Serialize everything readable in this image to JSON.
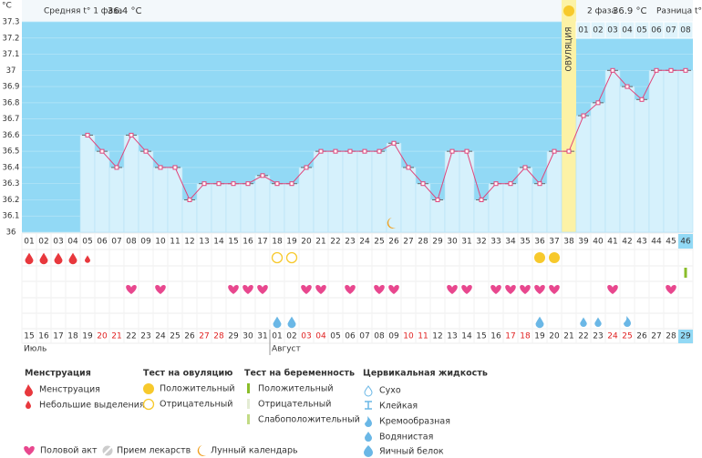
{
  "unit": "°C",
  "header": {
    "phase1_label": "Средняя t° 1 фаза",
    "phase1_value": "36.4 °C",
    "ovulation": "ОВУЛЯЦИЯ",
    "phase2_label": "2 фаза",
    "phase2_value": "36.9 °C",
    "difference_label": "Разница t°",
    "phase2_days": [
      "01",
      "02",
      "03",
      "04",
      "05",
      "06",
      "07",
      "08"
    ]
  },
  "chart_data": {
    "type": "line",
    "color": "#e0457b",
    "categories": [
      "01",
      "02",
      "03",
      "04",
      "05",
      "06",
      "07",
      "08",
      "09",
      "10",
      "11",
      "12",
      "13",
      "14",
      "15",
      "16",
      "17",
      "18",
      "19",
      "20",
      "21",
      "22",
      "23",
      "24",
      "25",
      "26",
      "27",
      "28",
      "29",
      "30",
      "31",
      "32",
      "33",
      "34",
      "35",
      "36",
      "37",
      "38",
      "39",
      "40",
      "41",
      "42",
      "43",
      "44",
      "45",
      "46"
    ],
    "values": [
      null,
      null,
      null,
      null,
      36.6,
      36.5,
      36.4,
      36.6,
      36.5,
      36.4,
      36.4,
      36.2,
      36.3,
      36.3,
      36.3,
      36.3,
      36.35,
      36.3,
      36.3,
      36.4,
      36.5,
      36.5,
      36.5,
      36.5,
      36.5,
      36.55,
      36.4,
      36.3,
      36.2,
      36.5,
      36.5,
      36.2,
      36.3,
      36.3,
      36.4,
      36.3,
      36.5,
      36.5,
      36.72,
      36.8,
      37.0,
      36.9,
      36.82,
      37.0,
      37.0,
      37.0
    ],
    "ylim": [
      36,
      37.3
    ],
    "yticks": [
      {
        "value": 36,
        "label": "36"
      },
      36.1,
      36.2,
      36.3,
      36.4,
      36.5,
      36.6,
      36.7,
      36.8,
      36.9,
      37,
      37.1,
      37.2,
      37.3
    ],
    "dates": [
      "15",
      "16",
      "17",
      "18",
      "19",
      "20",
      "21",
      "22",
      "23",
      "24",
      "25",
      "26",
      "27",
      "28",
      "29",
      "30",
      "31",
      "01",
      "02",
      "03",
      "04",
      "05",
      "06",
      "07",
      "08",
      "09",
      "10",
      "11",
      "12",
      "13",
      "14",
      "15",
      "16",
      "17",
      "18",
      "19",
      "20",
      "21",
      "22",
      "23",
      "24",
      "25",
      "26",
      "27",
      "28",
      "29"
    ],
    "weekends": [
      false,
      false,
      false,
      false,
      false,
      true,
      true,
      false,
      false,
      false,
      false,
      false,
      true,
      true,
      false,
      false,
      false,
      false,
      false,
      true,
      true,
      false,
      false,
      false,
      false,
      false,
      true,
      true,
      false,
      false,
      false,
      false,
      false,
      true,
      true,
      false,
      false,
      false,
      false,
      false,
      true,
      true,
      false,
      false,
      false,
      false
    ],
    "months": [
      "Июль",
      "Август"
    ]
  },
  "legend": {
    "menstruation": {
      "title": "Менструация",
      "items": [
        "Менструация",
        "Небольшие выделения"
      ]
    },
    "ovulation_test": {
      "title": "Тест на овуляцию",
      "items": [
        "Положительный",
        "Отрицательный"
      ]
    },
    "pregnancy_test": {
      "title": "Тест на беременность",
      "items": [
        "Положительный",
        "Отрицательный",
        "Слабоположительный"
      ]
    },
    "cervical": {
      "title": "Цервикальная жидкость",
      "items": [
        "Сухо",
        "Клейкая",
        "Кремообразная",
        "Водянистая",
        "Яичный белок"
      ]
    },
    "other": [
      "Половой акт",
      "Прием лекарств",
      "Лунный календарь"
    ]
  }
}
